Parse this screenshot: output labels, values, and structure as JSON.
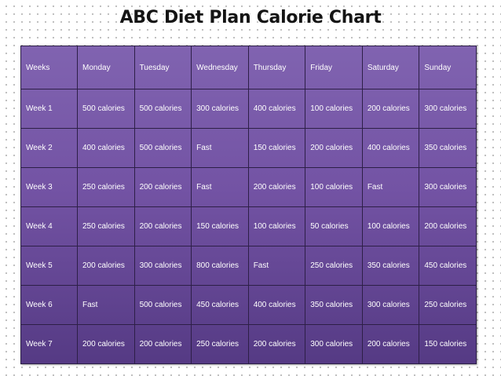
{
  "title": "ABC Diet Plan Calorie Chart",
  "table": {
    "headers": [
      "Weeks",
      "Monday",
      "Tuesday",
      "Wednesday",
      "Thursday",
      "Friday",
      "Saturday",
      "Sunday"
    ],
    "rows": [
      [
        "Week 1",
        "500 calories",
        "500 calories",
        "300 calories",
        "400 calories",
        "100 calories",
        "200 calories",
        "300 calories"
      ],
      [
        "Week 2",
        "400 calories",
        "500 calories",
        "Fast",
        "150 calories",
        "200 calories",
        "400 calories",
        "350 calories"
      ],
      [
        "Week 3",
        "250 calories",
        "200 calories",
        "Fast",
        "200 calories",
        "100 calories",
        "Fast",
        "300 calories"
      ],
      [
        "Week 4",
        "250 calories",
        "200 calories",
        "150 calories",
        "100 calories",
        "50 calories",
        "100 calories",
        "200 calories"
      ],
      [
        "Week 5",
        "200 calories",
        "300 calories",
        "800 calories",
        "Fast",
        "250 calories",
        "350 calories",
        "450 calories"
      ],
      [
        "Week 6",
        "Fast",
        "500 calories",
        "450 calories",
        "400 calories",
        "350 calories",
        "300 calories",
        "250 calories"
      ],
      [
        "Week 7",
        "200 calories",
        "200 calories",
        "250 calories",
        "200 calories",
        "300 calories",
        "200 calories",
        "150 calories"
      ]
    ]
  },
  "colors": {
    "table_fill_top": "#8063b0",
    "table_fill_bottom": "#553a84",
    "grid_line": "#2d1f47",
    "cell_text": "#ffffff",
    "title_text": "#141414"
  }
}
